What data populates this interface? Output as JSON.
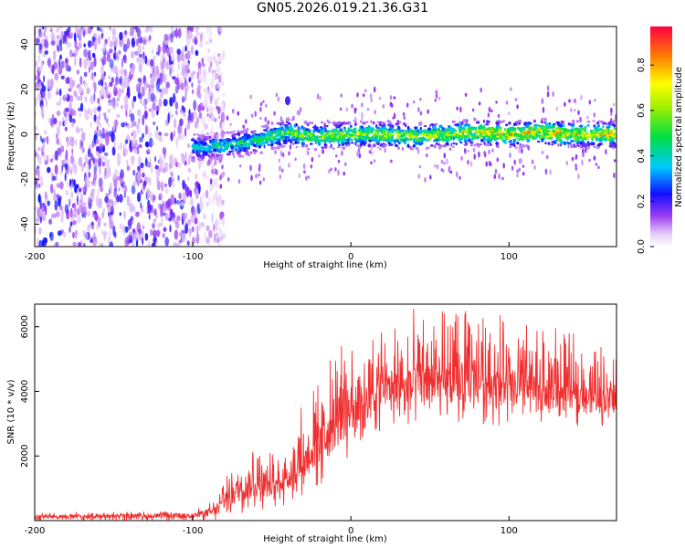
{
  "title": "GN05.2026.019.21.36.G31",
  "chart_data": [
    {
      "type": "heatmap",
      "xlabel": "Height of straight line (km)",
      "ylabel": "Frequency (Hz)",
      "xlim": [
        -200,
        168
      ],
      "ylim": [
        -50,
        48
      ],
      "xticks": [
        "-200",
        "-100",
        "0",
        "100"
      ],
      "yticks": [
        "-40",
        "-20",
        "0",
        "20",
        "40"
      ],
      "colorbar": {
        "label": "Normalized spectral amplitude",
        "range": [
          0,
          0.97
        ],
        "ticks": [
          "0.0",
          "0.2",
          "0.4",
          "0.6",
          "0.8"
        ]
      },
      "noise_region_x": [
        -200,
        -95
      ],
      "signal_track": {
        "x": [
          -100,
          -80,
          -60,
          -50,
          -40,
          -30,
          -20,
          0,
          20,
          40,
          60,
          80,
          100,
          120,
          140,
          168
        ],
        "freq_hz": [
          -6,
          -5,
          -3,
          -1,
          1,
          -0.5,
          -1,
          0,
          0,
          -1,
          0,
          1,
          0,
          1,
          0,
          0
        ],
        "amplitude": [
          0.45,
          0.5,
          0.55,
          0.6,
          0.65,
          0.65,
          0.7,
          0.75,
          0.75,
          0.7,
          0.75,
          0.8,
          0.85,
          0.85,
          0.85,
          0.85
        ]
      }
    },
    {
      "type": "line",
      "xlabel": "Height of straight line (km)",
      "ylabel": "SNR (10 * v/v)",
      "xlim": [
        -200,
        168
      ],
      "ylim": [
        0,
        6700
      ],
      "xticks": [
        "-200",
        "-100",
        "0",
        "100"
      ],
      "yticks": [
        "2000",
        "4000",
        "6000"
      ],
      "color": "#f03030",
      "envelope": {
        "x": [
          -200,
          -100,
          -85,
          -80,
          -70,
          -60,
          -50,
          -40,
          -30,
          -20,
          -10,
          0,
          10,
          20,
          40,
          60,
          80,
          100,
          120,
          140,
          168
        ],
        "low": [
          0,
          0,
          0,
          100,
          200,
          300,
          400,
          400,
          800,
          1000,
          1500,
          2000,
          2500,
          2800,
          2900,
          3000,
          3000,
          2900,
          2900,
          2900,
          2900
        ],
        "mid": [
          120,
          150,
          300,
          600,
          1000,
          1100,
          900,
          1300,
          1800,
          2300,
          2900,
          3300,
          3700,
          3900,
          4100,
          4200,
          4200,
          4100,
          3900,
          3800,
          3700
        ],
        "high": [
          250,
          300,
          650,
          1400,
          2100,
          2400,
          2100,
          2800,
          3700,
          4300,
          5300,
          5600,
          5900,
          6200,
          6600,
          6500,
          6500,
          6400,
          6200,
          5800,
          5300
        ]
      }
    }
  ]
}
